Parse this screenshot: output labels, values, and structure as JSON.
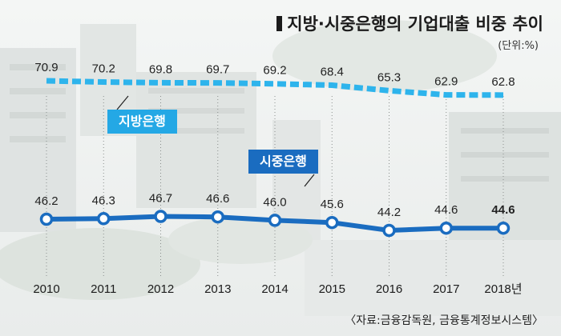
{
  "header": {
    "title": "지방·시중은행의 기업대출 비중 추이",
    "unit": "(단위:%)"
  },
  "footer": {
    "source": "〈자료:금융감독원, 금융통계정보시스템〉"
  },
  "colors": {
    "regional": "#2eb4ec",
    "commercial": "#1a6cc0",
    "regional_label_bg": "#24a8e5",
    "commercial_label_bg": "#1a6cc0"
  },
  "chart_data": {
    "type": "line",
    "title": "지방·시중은행의 기업대출 비중 추이",
    "unit": "(단위:%)",
    "categories": [
      "2010",
      "2011",
      "2012",
      "2013",
      "2014",
      "2015",
      "2016",
      "2017",
      "2018년"
    ],
    "series": [
      {
        "name": "지방은행",
        "values": [
          70.9,
          70.2,
          69.8,
          69.7,
          69.2,
          68.4,
          65.3,
          62.9,
          62.8
        ],
        "labels": [
          "70.9",
          "70.2",
          "69.8",
          "69.7",
          "69.2",
          "68.4",
          "65.3",
          "62.9",
          "62.8"
        ],
        "style": "dashed"
      },
      {
        "name": "시중은행",
        "values": [
          46.2,
          46.3,
          46.7,
          46.6,
          46.0,
          45.6,
          44.2,
          44.6,
          44.6
        ],
        "labels": [
          "46.2",
          "46.3",
          "46.7",
          "46.6",
          "46.0",
          "45.6",
          "44.2",
          "44.6",
          "44.6"
        ],
        "style": "solid-markers"
      }
    ],
    "grid": "vertical-dotted",
    "legend": "inline-labels"
  }
}
